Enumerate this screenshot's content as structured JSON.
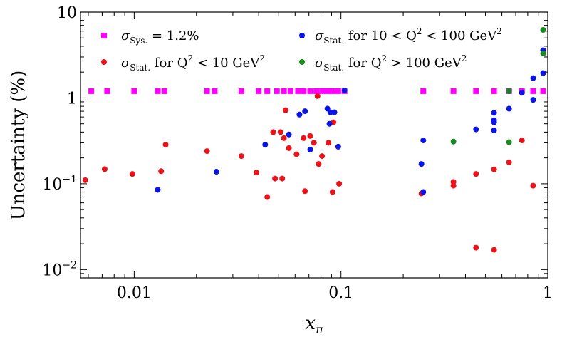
{
  "chart_data": {
    "type": "scatter",
    "title": "",
    "xlabel": "x_π",
    "ylabel": "Uncertainty (%)",
    "xscale": "log",
    "yscale": "log",
    "xlim": [
      0.0055,
      1.0
    ],
    "ylim": [
      0.008,
      10
    ],
    "grid": false,
    "legend_position": "top",
    "x_ticks": [
      {
        "value": 0.01,
        "label": "0.01"
      },
      {
        "value": 0.1,
        "label": "0.1"
      },
      {
        "value": 1,
        "label": "1"
      }
    ],
    "y_ticks": [
      {
        "value": 0.01,
        "base": "10",
        "exp": "−2"
      },
      {
        "value": 0.1,
        "base": "10",
        "exp": "−1"
      },
      {
        "value": 1,
        "base": "1",
        "exp": ""
      },
      {
        "value": 10,
        "base": "10",
        "exp": ""
      }
    ],
    "series": [
      {
        "name": "σ_Sys. = 1.2%",
        "legend": {
          "sym": "σ",
          "sub": "Sys.",
          "rest": " = 1.2%",
          "sup": "",
          "tail": ""
        },
        "marker": "square",
        "color": "#ff00ff",
        "points": [
          [
            0.0062,
            1.2
          ],
          [
            0.0074,
            1.2
          ],
          [
            0.01,
            1.2
          ],
          [
            0.013,
            1.2
          ],
          [
            0.014,
            1.2
          ],
          [
            0.0225,
            1.2
          ],
          [
            0.0245,
            1.2
          ],
          [
            0.033,
            1.2
          ],
          [
            0.04,
            1.2
          ],
          [
            0.044,
            1.2
          ],
          [
            0.049,
            1.2
          ],
          [
            0.053,
            1.2
          ],
          [
            0.057,
            1.2
          ],
          [
            0.062,
            1.2
          ],
          [
            0.066,
            1.2
          ],
          [
            0.071,
            1.2
          ],
          [
            0.076,
            1.2
          ],
          [
            0.081,
            1.2
          ],
          [
            0.086,
            1.2
          ],
          [
            0.091,
            1.2
          ],
          [
            0.097,
            1.2
          ],
          [
            0.104,
            1.2
          ],
          [
            0.25,
            1.2
          ],
          [
            0.35,
            1.2
          ],
          [
            0.45,
            1.2
          ],
          [
            0.55,
            1.2
          ],
          [
            0.65,
            1.2
          ],
          [
            0.75,
            1.2
          ],
          [
            0.85,
            1.2
          ],
          [
            0.95,
            1.2
          ]
        ]
      },
      {
        "name": "σ_Stat. for Q^2 < 10 GeV^2",
        "legend": {
          "sym": "σ",
          "sub": "Stat.",
          "rest": " for Q",
          "sup": "2",
          "tail": " < 10 GeV",
          "sup2": "2"
        },
        "marker": "circle",
        "color": "#e8141a",
        "points": [
          [
            0.0058,
            0.11
          ],
          [
            0.0072,
            0.148
          ],
          [
            0.0098,
            0.13
          ],
          [
            0.0135,
            0.14
          ],
          [
            0.0142,
            0.285
          ],
          [
            0.0225,
            0.24
          ],
          [
            0.033,
            0.21
          ],
          [
            0.039,
            0.135
          ],
          [
            0.044,
            0.07
          ],
          [
            0.047,
            0.4
          ],
          [
            0.048,
            0.115
          ],
          [
            0.051,
            0.4
          ],
          [
            0.052,
            0.115
          ],
          [
            0.054,
            0.72
          ],
          [
            0.053,
            0.34
          ],
          [
            0.056,
            0.26
          ],
          [
            0.061,
            0.22
          ],
          [
            0.066,
            0.34
          ],
          [
            0.067,
            0.082
          ],
          [
            0.071,
            0.36
          ],
          [
            0.074,
            0.3
          ],
          [
            0.077,
            1.05
          ],
          [
            0.078,
            0.17
          ],
          [
            0.081,
            0.21
          ],
          [
            0.087,
            0.3
          ],
          [
            0.091,
            0.08
          ],
          [
            0.092,
            0.52
          ],
          [
            0.098,
            0.1
          ],
          [
            0.245,
            0.077
          ],
          [
            0.35,
            0.105
          ],
          [
            0.35,
            0.095
          ],
          [
            0.45,
            0.13
          ],
          [
            0.45,
            0.018
          ],
          [
            0.55,
            0.147
          ],
          [
            0.55,
            0.017
          ],
          [
            0.65,
            0.178
          ],
          [
            0.75,
            0.32
          ],
          [
            0.85,
            0.095
          ]
        ]
      },
      {
        "name": "σ_Stat. for 10 < Q^2 < 100 GeV^2",
        "legend": {
          "sym": "σ",
          "sub": "Stat.",
          "rest": " for 10 < Q",
          "sup": "2",
          "tail": " < 100 GeV",
          "sup2": "2"
        },
        "marker": "circle",
        "color": "#0a14e6",
        "points": [
          [
            0.013,
            0.085
          ],
          [
            0.025,
            0.138
          ],
          [
            0.043,
            0.285
          ],
          [
            0.056,
            0.375
          ],
          [
            0.063,
            0.64
          ],
          [
            0.067,
            0.7
          ],
          [
            0.071,
            0.25
          ],
          [
            0.086,
            0.75
          ],
          [
            0.088,
            0.5
          ],
          [
            0.089,
            0.68
          ],
          [
            0.093,
            0.68
          ],
          [
            0.097,
            0.27
          ],
          [
            0.104,
            1.22
          ],
          [
            0.245,
            0.17
          ],
          [
            0.25,
            0.08
          ],
          [
            0.25,
            0.32
          ],
          [
            0.45,
            0.43
          ],
          [
            0.55,
            0.67
          ],
          [
            0.55,
            0.55
          ],
          [
            0.55,
            0.52
          ],
          [
            0.55,
            0.42
          ],
          [
            0.65,
            0.75
          ],
          [
            0.65,
            1.2
          ],
          [
            0.75,
            1.15
          ],
          [
            0.85,
            1.7
          ],
          [
            0.85,
            0.95
          ],
          [
            0.95,
            3.6
          ],
          [
            0.95,
            1.95
          ]
        ]
      },
      {
        "name": "σ_Stat. for Q^2 > 100 GeV^2",
        "legend": {
          "sym": "σ",
          "sub": "Stat.",
          "rest": " for Q",
          "sup": "2",
          "tail": " > 100 GeV",
          "sup2": "2"
        },
        "marker": "circle",
        "color": "#168a1e",
        "points": [
          [
            0.35,
            0.31
          ],
          [
            0.65,
            1.2
          ],
          [
            0.65,
            0.305
          ],
          [
            0.95,
            6.2
          ],
          [
            0.95,
            3.3
          ]
        ]
      }
    ]
  }
}
